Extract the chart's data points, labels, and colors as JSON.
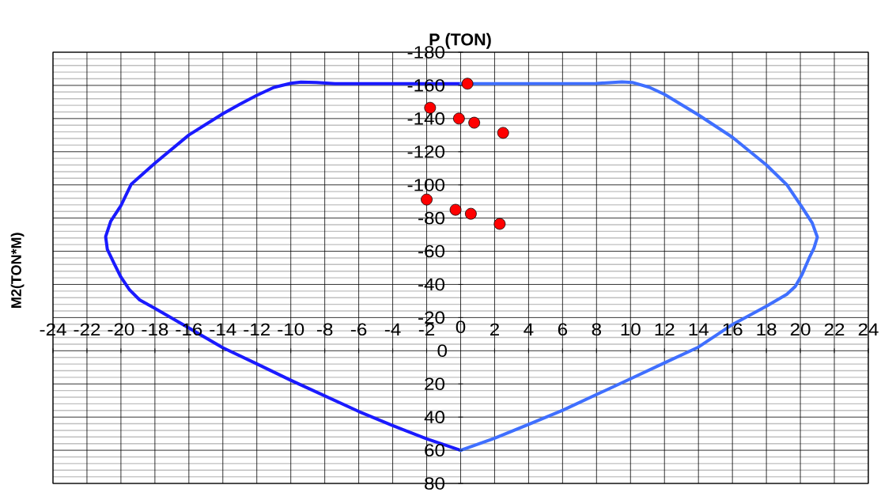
{
  "chart_data": {
    "type": "line",
    "xlabel": "P (TON)",
    "ylabel": "M2(TON*M)",
    "xlim": [
      -24,
      24
    ],
    "xticks": [
      -24,
      -22,
      -20,
      -18,
      -16,
      -14,
      -12,
      -10,
      -8,
      -6,
      -4,
      -2,
      0,
      2,
      4,
      6,
      8,
      10,
      12,
      14,
      16,
      18,
      20,
      22,
      24
    ],
    "ylim": [
      80,
      -180
    ],
    "yticks": [
      -180,
      -160,
      -140,
      -120,
      -100,
      -80,
      -60,
      -40,
      -20,
      0,
      20,
      40,
      60,
      80
    ],
    "grid": true,
    "series": [
      {
        "color": "#1a1aff",
        "x": [
          0,
          -7.4,
          -8.5,
          -9.4,
          -10,
          -11,
          -12,
          -13,
          -14,
          -16,
          -18,
          -19.4,
          -20,
          -20.6,
          -20.9,
          -20.8,
          -20.4,
          -20,
          -19.5,
          -18.9,
          -18,
          -16,
          -14,
          -12,
          -10,
          -6,
          -4,
          -2,
          0
        ],
        "values": [
          -161,
          -161,
          -161.8,
          -162,
          -161.3,
          -158.8,
          -154,
          -148.6,
          -142.9,
          -130.1,
          -113.1,
          -100.3,
          -87.5,
          -78.1,
          -68.8,
          -61.1,
          -52.6,
          -44.4,
          -36.8,
          -30.7,
          -25.6,
          -13.7,
          -1.8,
          7.9,
          17.8,
          36.6,
          45.1,
          53.1,
          60
        ]
      },
      {
        "color": "#3f6fff",
        "x": [
          0,
          8,
          9.5,
          10.1,
          11.1,
          12,
          14,
          16,
          18,
          19.2,
          20.1,
          20.7,
          21,
          20.8,
          20.5,
          20.1,
          19.7,
          19.2,
          18,
          16,
          14,
          12,
          10,
          6,
          4,
          2,
          0
        ],
        "values": [
          -161,
          -161.2,
          -162.1,
          -161.8,
          -158.9,
          -154.6,
          -142.2,
          -128.7,
          -112,
          -100.1,
          -86.5,
          -77,
          -68.5,
          -61.9,
          -55.5,
          -46,
          -38.8,
          -34,
          -26.9,
          -15.8,
          -2.2,
          7.3,
          16.9,
          35.9,
          44.4,
          52.7,
          60
        ]
      },
      {
        "type": "scatter",
        "color": "#ff0000",
        "marker": "circle",
        "x": [
          0.4,
          -1.8,
          -0.1,
          0.8,
          2.5,
          -2.0,
          -0.3,
          0.6,
          2.3
        ],
        "values": [
          -161,
          -146.5,
          -140,
          -137.5,
          -131.4,
          -91.2,
          -85,
          -82.6,
          -76.5
        ]
      }
    ]
  }
}
